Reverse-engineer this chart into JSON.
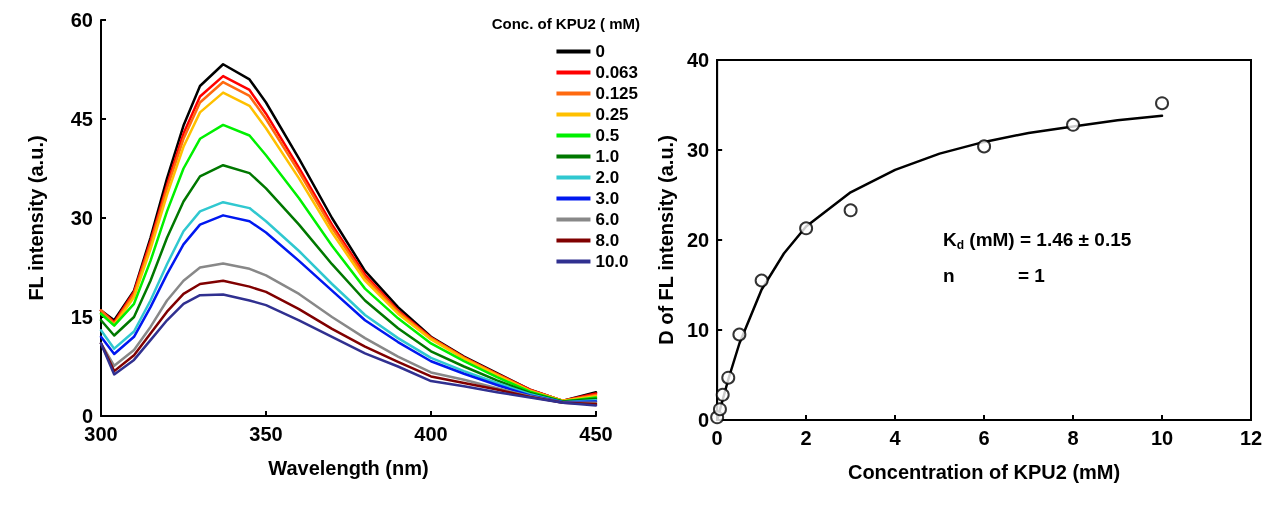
{
  "chart_data": [
    {
      "type": "line",
      "xlabel": "Wavelength (nm)",
      "ylabel": "FL intensity (a.u.)",
      "legend_title": "Conc. of KPU2 ( mM)",
      "legend": "top right",
      "grid": false,
      "x": [
        300,
        304,
        310,
        315,
        320,
        325,
        330,
        337,
        345,
        350,
        360,
        370,
        380,
        390,
        400,
        410,
        420,
        430,
        440,
        450
      ],
      "xlim": [
        300,
        450
      ],
      "xticks": [
        300,
        350,
        400,
        450
      ],
      "ylim": [
        0,
        60
      ],
      "yticks": [
        0,
        15,
        30,
        45,
        60
      ],
      "series": [
        {
          "name": "0",
          "color": "#000000",
          "values": [
            16,
            14.5,
            19,
            27,
            36,
            44,
            50,
            53.3,
            51,
            47.5,
            39,
            30,
            22,
            16.5,
            12,
            9,
            6.5,
            4,
            2.3,
            3.6
          ]
        },
        {
          "name": "0.063",
          "color": "#ff0000",
          "values": [
            16,
            14.2,
            18.8,
            26.5,
            35,
            42.8,
            48.4,
            51.5,
            49.4,
            45.8,
            37.6,
            29,
            21.4,
            16,
            11.9,
            8.9,
            6.4,
            4,
            2.3,
            3.4
          ]
        },
        {
          "name": "0.125",
          "color": "#ff6a10",
          "values": [
            16,
            14,
            18.5,
            26,
            34.5,
            42,
            47.5,
            50.6,
            48.5,
            45,
            37,
            28.5,
            21,
            15.8,
            11.8,
            8.8,
            6.3,
            3.9,
            2.3,
            3.2
          ]
        },
        {
          "name": "0.25",
          "color": "#ffc000",
          "values": [
            15.5,
            13.8,
            18,
            25.3,
            33.5,
            40.8,
            46,
            49,
            47,
            43.6,
            36,
            27.8,
            20.5,
            15.5,
            11.6,
            8.7,
            6.2,
            3.8,
            2.3,
            3.0
          ]
        },
        {
          "name": "0.5",
          "color": "#00f000",
          "values": [
            15.5,
            13.7,
            17,
            23.5,
            31,
            37.5,
            42,
            44.1,
            42.5,
            39.5,
            33,
            25.8,
            19.3,
            14.8,
            11,
            8.3,
            5.9,
            3.7,
            2.2,
            2.8
          ]
        },
        {
          "name": "1.0",
          "color": "#007800",
          "values": [
            14.5,
            12.2,
            15,
            20.5,
            27,
            32.5,
            36.3,
            38,
            36.8,
            34.5,
            29,
            23,
            17.5,
            13.3,
            9.8,
            7.5,
            5.4,
            3.5,
            2.2,
            2.6
          ]
        },
        {
          "name": "2.0",
          "color": "#30c8d0",
          "values": [
            13,
            10.2,
            12.8,
            17.5,
            23,
            28,
            31,
            32.4,
            31.5,
            29.5,
            25,
            20,
            15.3,
            11.8,
            8.8,
            6.8,
            5,
            3.3,
            2.1,
            2.4
          ]
        },
        {
          "name": "3.0",
          "color": "#0018f0",
          "values": [
            12,
            9.4,
            12,
            16.5,
            21.5,
            26,
            29,
            30.4,
            29.5,
            27.8,
            23.5,
            19,
            14.5,
            11.2,
            8.3,
            6.4,
            4.7,
            3.1,
            2.1,
            2.2
          ]
        },
        {
          "name": "6.0",
          "color": "#888888",
          "values": [
            11,
            7.6,
            10,
            13.5,
            17.5,
            20.5,
            22.5,
            23.1,
            22.3,
            21.3,
            18.5,
            15,
            11.8,
            9,
            6.6,
            5.5,
            4.2,
            3,
            2,
            2.0
          ]
        },
        {
          "name": "8.0",
          "color": "#800000",
          "values": [
            11,
            6.8,
            9.2,
            12.5,
            15.8,
            18.5,
            20,
            20.5,
            19.6,
            18.8,
            16.2,
            13.2,
            10.5,
            8.2,
            6,
            5,
            4,
            2.9,
            2,
            1.8
          ]
        },
        {
          "name": "10.0",
          "color": "#303090",
          "values": [
            11,
            6.3,
            8.5,
            11.5,
            14.5,
            17,
            18.3,
            18.4,
            17.5,
            16.8,
            14.5,
            12,
            9.5,
            7.5,
            5.3,
            4.5,
            3.6,
            2.8,
            2,
            1.6
          ]
        }
      ]
    },
    {
      "type": "scatter",
      "xlabel": "Concentration of KPU2 (mM)",
      "ylabel": "D of FL intensity (a.u.)",
      "grid": false,
      "legend": false,
      "marker": "circle",
      "xlim": [
        0,
        12
      ],
      "xticks": [
        0,
        2,
        4,
        6,
        8,
        10,
        12
      ],
      "ylim": [
        0,
        40
      ],
      "yticks": [
        0,
        10,
        20,
        30,
        40
      ],
      "annotations": [
        "K$_{d}$ (mM) = 1.46 ± 0.15",
        "n            = 1"
      ],
      "series": [
        {
          "color": "#000000",
          "x": [
            0,
            0.063,
            0.125,
            0.25,
            0.5,
            1,
            2,
            3,
            6,
            8,
            10
          ],
          "values": [
            0.3,
            1.2,
            2.8,
            4.7,
            9.5,
            15.5,
            21.3,
            23.3,
            30.4,
            32.8,
            35.2
          ]
        },
        {
          "type": "line",
          "color": "#000000",
          "marker": "none",
          "x": [
            0,
            0.25,
            0.5,
            1,
            1.5,
            2,
            3,
            4,
            5,
            6,
            7,
            8,
            9,
            10
          ],
          "values": [
            0,
            4.5,
            8.5,
            14.5,
            18.5,
            21.5,
            25.3,
            27.8,
            29.6,
            30.9,
            31.9,
            32.6,
            33.3,
            33.8
          ]
        }
      ]
    }
  ]
}
